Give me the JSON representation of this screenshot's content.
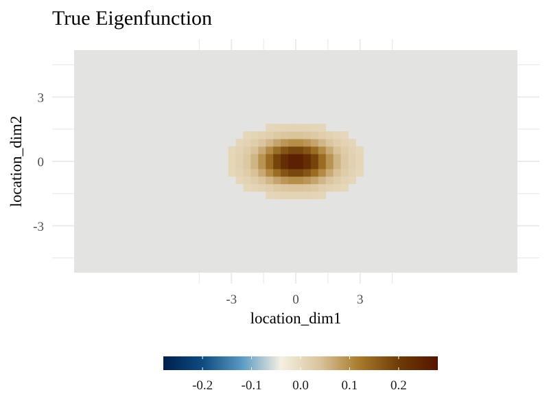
{
  "chart_data": {
    "type": "heatmap",
    "title": "True Eigenfunction",
    "xlabel": "location_dim1",
    "ylabel": "location_dim2",
    "x_ticks": [
      -3,
      0,
      3
    ],
    "x_tick_labels": [
      "-3",
      "0",
      "3"
    ],
    "y_ticks": [
      3,
      0,
      -3
    ],
    "y_tick_labels": [
      "3",
      "0",
      "-3"
    ],
    "xlim": [
      -5.2,
      5.2
    ],
    "ylim": [
      -5.2,
      5.2
    ],
    "grid": true,
    "grid_spacing": 1.5,
    "cell_size": 0.35,
    "cells_x": 30,
    "cells_y": 30,
    "peak_value": 0.27,
    "sigma_x": 1.1,
    "sigma_y": 0.62,
    "background_fill": "#e3e4e1",
    "colorbar": {
      "position": "bottom",
      "limits": [
        -0.28,
        0.28
      ],
      "ticks": [
        -0.2,
        -0.1,
        0.0,
        0.1,
        0.2
      ],
      "tick_labels": [
        "-0.2",
        "-0.1",
        "0.0",
        "0.1",
        "0.2"
      ],
      "palette": [
        "#00204d",
        "#0e4b80",
        "#5a99c2",
        "#f5f0e3",
        "#d9c39a",
        "#a87a2c",
        "#6e3c06",
        "#541500"
      ]
    }
  }
}
